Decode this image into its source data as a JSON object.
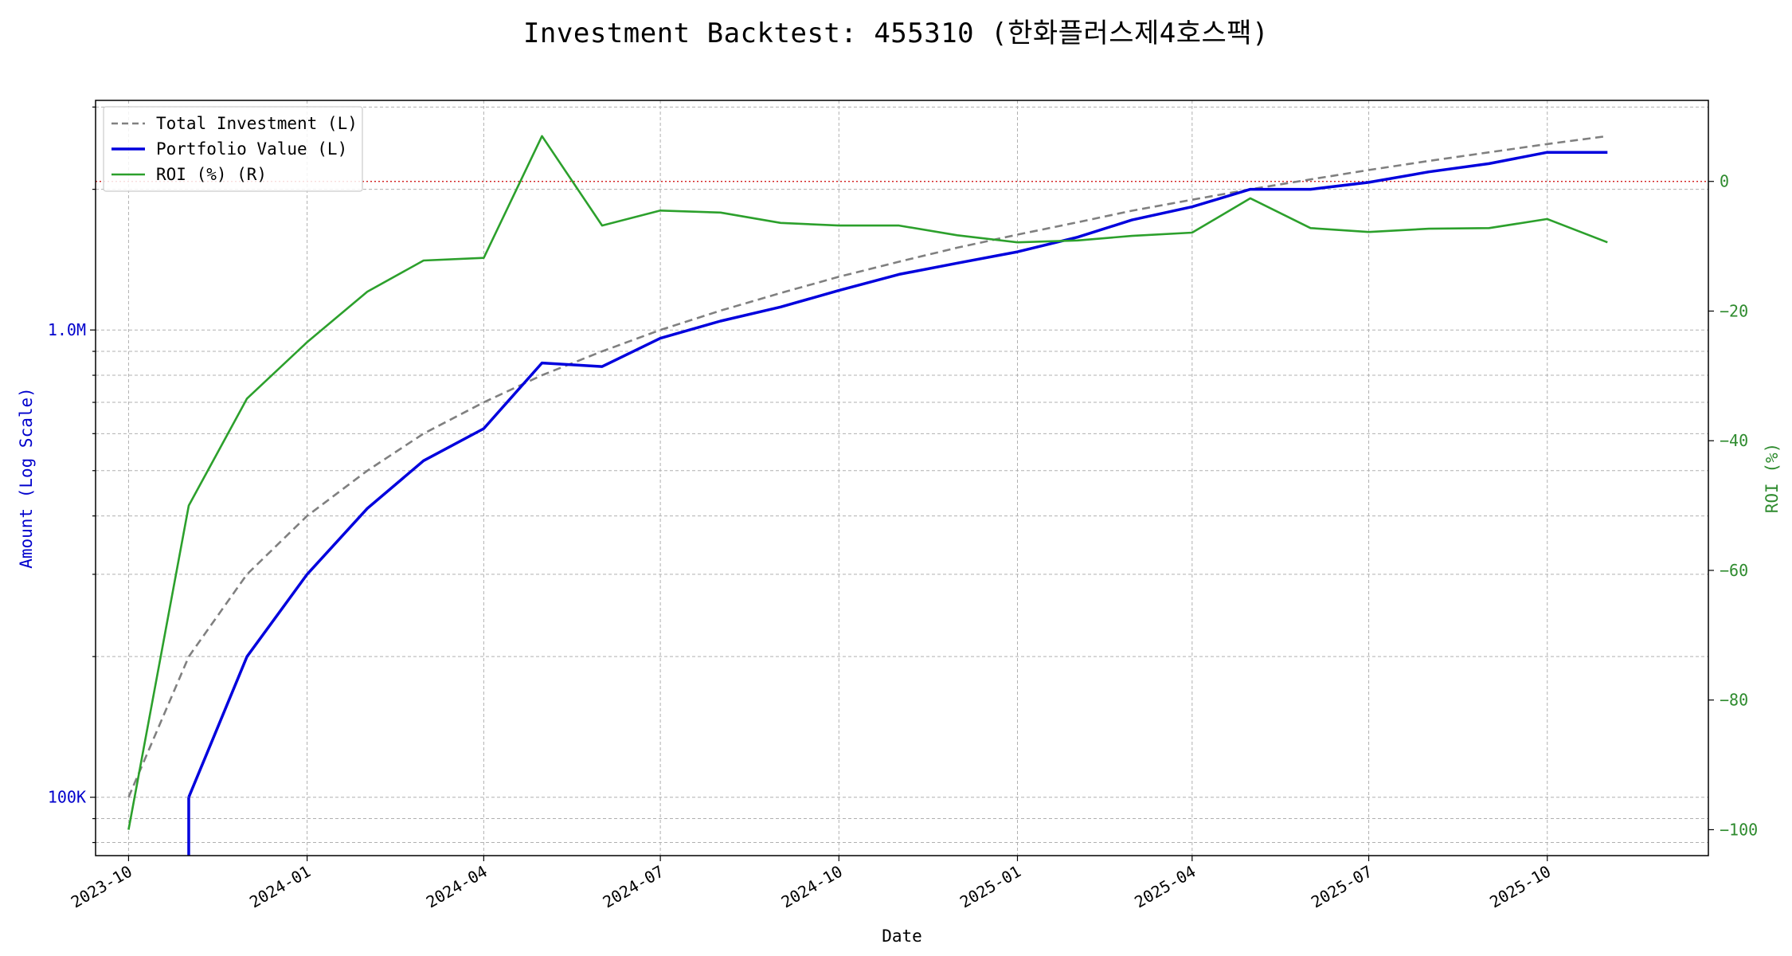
{
  "chart_data": {
    "type": "line",
    "title": "Investment Backtest: 455310 (한화플러스제4호스팩)",
    "xlabel": "Date",
    "ylabel_left": "Amount (Log Scale)",
    "ylabel_right": "ROI (%)",
    "left_axis_scale": "log",
    "left_ylim": [
      75000,
      3100000
    ],
    "right_ylim": [
      -104,
      12.5
    ],
    "left_ticks": [
      {
        "value": 100000,
        "label": "100K"
      },
      {
        "value": 1000000,
        "label": "1.0M"
      }
    ],
    "right_ticks": [
      0,
      -20,
      -40,
      -60,
      -80,
      -100
    ],
    "x_range": [
      "2023-09-14",
      "2025-12-23"
    ],
    "x_ticks": [
      "2023-10",
      "2024-01",
      "2024-04",
      "2024-07",
      "2024-10",
      "2025-01",
      "2025-04",
      "2025-07",
      "2025-10"
    ],
    "grid": true,
    "legend_position": "upper-left",
    "reference_line": {
      "axis": "right",
      "value": 0,
      "color": "#cc0000",
      "style": "dotted"
    },
    "x": [
      "2023-10-01",
      "2023-11-01",
      "2023-12-01",
      "2024-01-01",
      "2024-02-01",
      "2024-03-01",
      "2024-04-01",
      "2024-05-01",
      "2024-06-01",
      "2024-07-01",
      "2024-08-01",
      "2024-09-01",
      "2024-10-01",
      "2024-11-01",
      "2024-12-01",
      "2025-01-01",
      "2025-02-01",
      "2025-03-01",
      "2025-04-01",
      "2025-05-01",
      "2025-06-01",
      "2025-07-01",
      "2025-08-01",
      "2025-09-01",
      "2025-10-01",
      "2025-11-01"
    ],
    "series": [
      {
        "name": "Total Investment (L)",
        "axis": "left",
        "color": "#808080",
        "style": "dashed",
        "values": [
          100000,
          200000,
          300000,
          400000,
          500000,
          600000,
          700000,
          800000,
          900000,
          1000000,
          1100000,
          1200000,
          1300000,
          1400000,
          1500000,
          1600000,
          1700000,
          1800000,
          1900000,
          2000000,
          2100000,
          2200000,
          2300000,
          2400000,
          2500000,
          2600000
        ]
      },
      {
        "name": "Portfolio Value (L)",
        "axis": "left",
        "color": "#0000dd",
        "style": "solid",
        "values": [
          null,
          100000,
          200000,
          300000,
          415000,
          525000,
          615000,
          850000,
          835000,
          960000,
          1045000,
          1120000,
          1215000,
          1315000,
          1390000,
          1470000,
          1580000,
          1720000,
          1835000,
          2000000,
          2000000,
          2070000,
          2180000,
          2270000,
          2400000,
          2400000
        ]
      },
      {
        "name": "ROI (%) (R)",
        "axis": "right",
        "color": "#2ca02c",
        "style": "solid",
        "values": [
          -100,
          -50,
          -33.5,
          -24.8,
          -17,
          -12.2,
          -11.8,
          7,
          -6.8,
          -4.5,
          -4.8,
          -6.4,
          -6.8,
          -6.8,
          -8.3,
          -9.4,
          -9.1,
          -8.4,
          -7.9,
          -2.6,
          -7.2,
          -7.8,
          -7.3,
          -7.2,
          -5.8,
          -9.4
        ]
      }
    ]
  }
}
